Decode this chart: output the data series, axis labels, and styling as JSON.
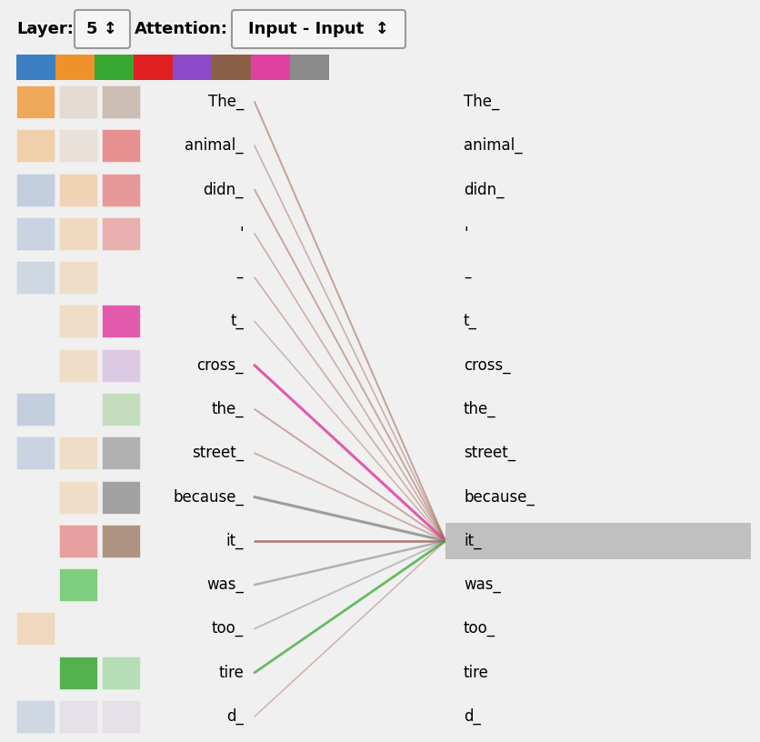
{
  "tokens": [
    "The_",
    "animal_",
    "didn_",
    "'",
    "–",
    "t_",
    "cross_",
    "the_",
    "street_",
    "because_",
    "it_",
    "was_",
    "too_",
    "tire",
    "d_"
  ],
  "head_colors": [
    "#3a7fc1",
    "#f0922b",
    "#38a832",
    "#e02020",
    "#8b4bc8",
    "#8b6048",
    "#e040a0",
    "#8a8a8a"
  ],
  "background_color": "#f0f0f0",
  "highlight_token_idx": 10,
  "highlight_color": "#c0c0c0",
  "line_data": [
    {
      "color": "#a06050",
      "alpha": 0.55,
      "lw": 1.4
    },
    {
      "color": "#a06050",
      "alpha": 0.45,
      "lw": 1.2
    },
    {
      "color": "#a06050",
      "alpha": 0.5,
      "lw": 1.4
    },
    {
      "color": "#a06050",
      "alpha": 0.45,
      "lw": 1.2
    },
    {
      "color": "#a06050",
      "alpha": 0.45,
      "lw": 1.2
    },
    {
      "color": "#a06050",
      "alpha": 0.4,
      "lw": 1.2
    },
    {
      "color": "#e040a0",
      "alpha": 0.85,
      "lw": 2.2
    },
    {
      "color": "#a06050",
      "alpha": 0.5,
      "lw": 1.4
    },
    {
      "color": "#a06050",
      "alpha": 0.45,
      "lw": 1.4
    },
    {
      "color": "#888888",
      "alpha": 0.8,
      "lw": 2.2
    },
    {
      "color": "#903030",
      "alpha": 0.65,
      "lw": 1.8
    },
    {
      "color": "#888888",
      "alpha": 0.6,
      "lw": 1.8
    },
    {
      "color": "#888888",
      "alpha": 0.5,
      "lw": 1.4
    },
    {
      "color": "#38a832",
      "alpha": 0.75,
      "lw": 2.0
    },
    {
      "color": "#a06050",
      "alpha": 0.4,
      "lw": 1.2
    }
  ],
  "left_squares": [
    {
      "col1": [
        "#f0922b",
        0.75
      ],
      "col2": [
        "#c8a080",
        0.25
      ],
      "col3": [
        "#8b6048",
        0.35
      ]
    },
    {
      "col1": [
        "#f0922b",
        0.35
      ],
      "col2": [
        "#c8a080",
        0.2
      ],
      "col3": [
        "#e05050",
        0.6
      ]
    },
    {
      "col1": [
        "#7090c0",
        0.35
      ],
      "col2": [
        "#f0922b",
        0.3
      ],
      "col3": [
        "#e05050",
        0.55
      ]
    },
    {
      "col1": [
        "#7090c0",
        0.3
      ],
      "col2": [
        "#f0922b",
        0.25
      ],
      "col3": [
        "#e05050",
        0.4
      ]
    },
    {
      "col1": [
        "#7090c0",
        0.25
      ],
      "col2": [
        "#f0922b",
        0.2
      ],
      "col3": null
    },
    {
      "col1": null,
      "col2": [
        "#f0922b",
        0.2
      ],
      "col3": [
        "#e040a0",
        0.85
      ]
    },
    {
      "col1": null,
      "col2": [
        "#f0922b",
        0.2
      ],
      "col3": [
        "#c090d0",
        0.4
      ]
    },
    {
      "col1": [
        "#7090c0",
        0.35
      ],
      "col2": null,
      "col3": [
        "#90c880",
        0.45
      ]
    },
    {
      "col1": [
        "#7090c0",
        0.3
      ],
      "col2": [
        "#f0922b",
        0.2
      ],
      "col3": [
        "#888888",
        0.6
      ]
    },
    {
      "col1": null,
      "col2": [
        "#f0922b",
        0.2
      ],
      "col3": [
        "#888888",
        0.75
      ]
    },
    {
      "col1": null,
      "col2": [
        "#e05050",
        0.5
      ],
      "col3": [
        "#8b6048",
        0.65
      ]
    },
    {
      "col1": null,
      "col2": [
        "#50c050",
        0.7
      ],
      "col3": null
    },
    {
      "col1": [
        "#f0922b",
        0.25
      ],
      "col2": null,
      "col3": null
    },
    {
      "col1": null,
      "col2": [
        "#38a832",
        0.85
      ],
      "col3": [
        "#70c870",
        0.45
      ]
    },
    {
      "col1": [
        "#7090c0",
        0.25
      ],
      "col2": [
        "#c0a0d0",
        0.2
      ],
      "col3": [
        "#c0a0d0",
        0.2
      ]
    }
  ]
}
